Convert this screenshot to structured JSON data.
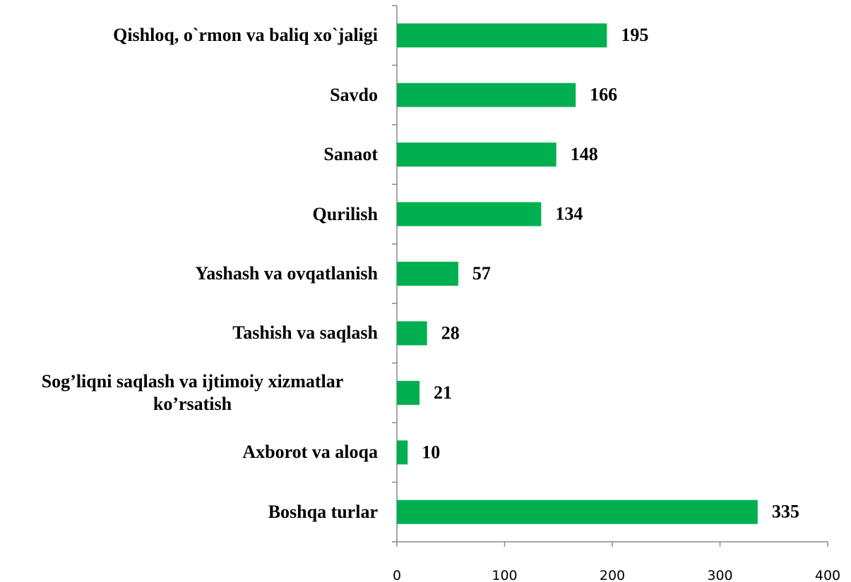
{
  "chart_data": {
    "type": "bar",
    "orientation": "horizontal",
    "categories": [
      "Qishloq, o`rmon va baliq xo`jaligi",
      "Savdo",
      "Sanaot",
      "Qurilish",
      "Yashash va ovqatlanish",
      "Tashish va saqlash",
      "Sog’liqni saqlash va ijtimoiy xizmatlar ko’rsatish",
      "Axborot va aloqa",
      "Boshqa turlar"
    ],
    "values": [
      195,
      166,
      148,
      134,
      57,
      28,
      21,
      10,
      335
    ],
    "color": "#00b050",
    "xlim": [
      0,
      400
    ],
    "xticks": [
      0,
      100,
      200,
      300,
      400
    ]
  }
}
